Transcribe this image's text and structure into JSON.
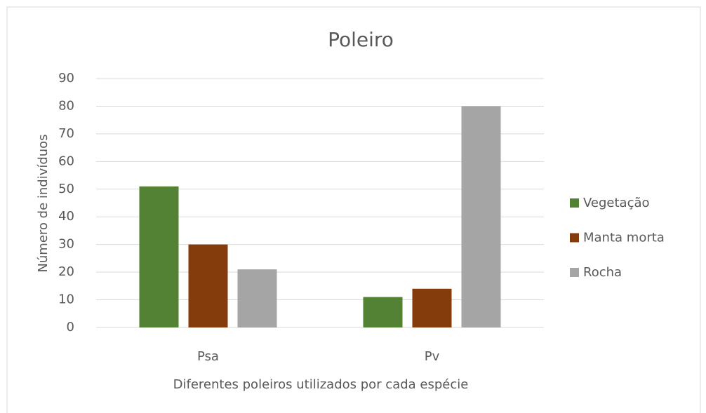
{
  "chart_data": {
    "type": "bar",
    "title": "Poleiro",
    "x_label": "Diferentes poleiros utilizados por cada espécie",
    "y_label": "Número de indivíduos",
    "categories": [
      "Psa",
      "Pv"
    ],
    "series": [
      {
        "name": "Vegetação",
        "color": "#548235",
        "values": [
          51,
          11
        ]
      },
      {
        "name": "Manta morta",
        "color": "#843c0c",
        "values": [
          30,
          14
        ]
      },
      {
        "name": "Rocha",
        "color": "#a5a5a5",
        "values": [
          21,
          80
        ]
      }
    ],
    "ylim": [
      0,
      90
    ],
    "yticks": [
      0,
      10,
      20,
      30,
      40,
      50,
      60,
      70,
      80,
      90
    ],
    "grid": true,
    "legend": "right"
  }
}
